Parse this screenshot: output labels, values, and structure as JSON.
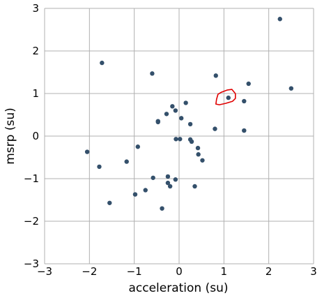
{
  "chart_data": {
    "type": "scatter",
    "title": "",
    "xlabel": "acceleration (su)",
    "ylabel": "msrp (su)",
    "xlim": [
      -3,
      3
    ],
    "ylim": [
      -3,
      3
    ],
    "xticks": [
      -3,
      -2,
      -1,
      0,
      1,
      2,
      3
    ],
    "yticks": [
      -3,
      -2,
      -1,
      0,
      1,
      2,
      3
    ],
    "xtick_labels": [
      "−3",
      "−2",
      "−1",
      "0",
      "1",
      "2",
      "3"
    ],
    "ytick_labels": [
      "−3",
      "−2",
      "−1",
      "0",
      "1",
      "2",
      "3"
    ],
    "grid": true,
    "point_color": "#34506b",
    "annotation_color": "#e00000",
    "annotation": {
      "type": "hand-drawn-circle",
      "around": [
        1.1,
        0.9
      ]
    },
    "series": [
      {
        "x": [
          2.25,
          -1.72,
          -0.6,
          0.82,
          1.55,
          2.5,
          1.45,
          1.1,
          -0.15,
          -0.28,
          -0.08,
          0.15,
          -0.47,
          -0.47,
          0.05,
          0.25,
          0.8,
          1.45,
          0.25,
          0.28,
          -0.07,
          0.02,
          0.42,
          0.43,
          0.52,
          -0.92,
          -2.05,
          -1.17,
          -1.78,
          -0.58,
          -0.25,
          -0.08,
          -0.25,
          -0.2,
          0.35,
          -0.75,
          -0.98,
          -1.55,
          -0.38
        ],
        "y": [
          2.75,
          1.72,
          1.47,
          1.42,
          1.23,
          1.12,
          0.82,
          0.9,
          0.7,
          0.52,
          0.6,
          0.78,
          0.35,
          0.33,
          0.42,
          0.28,
          0.17,
          0.13,
          -0.08,
          -0.13,
          -0.07,
          -0.07,
          -0.28,
          -0.43,
          -0.57,
          -0.25,
          -0.37,
          -0.6,
          -0.72,
          -0.98,
          -0.95,
          -1.02,
          -1.1,
          -1.18,
          -1.18,
          -1.27,
          -1.37,
          -1.57,
          -1.7
        ]
      }
    ]
  }
}
